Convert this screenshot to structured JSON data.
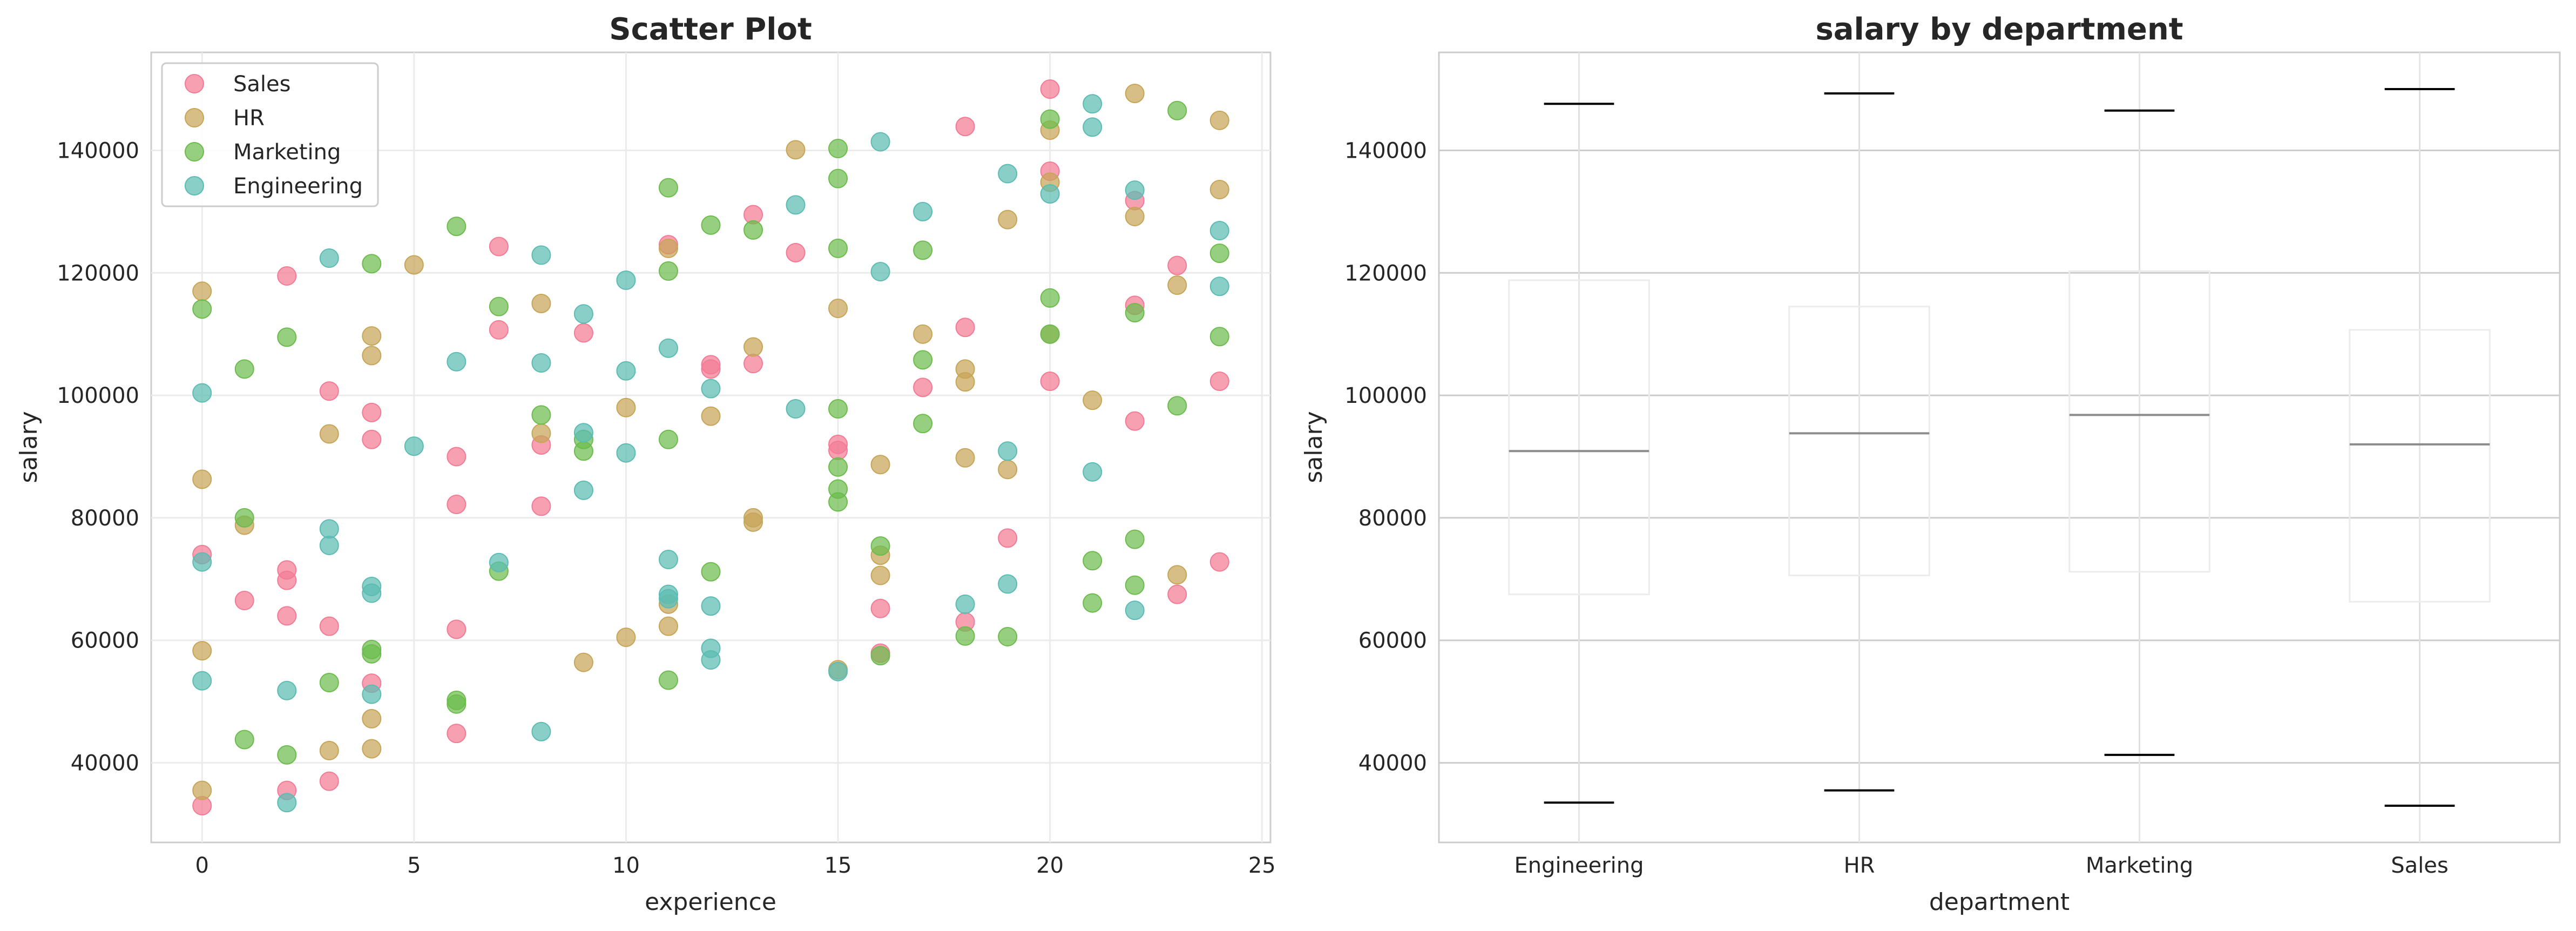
{
  "chart_data": [
    {
      "type": "scatter",
      "title": "Scatter Plot",
      "xlabel": "experience",
      "ylabel": "salary",
      "xlim": [
        -1.2,
        25.2
      ],
      "ylim": [
        27000,
        156000
      ],
      "xticks": [
        0,
        5,
        10,
        15,
        20,
        25
      ],
      "yticks": [
        40000,
        60000,
        80000,
        100000,
        120000,
        140000
      ],
      "grid": true,
      "legend_placement": "top-left",
      "series": [
        {
          "name": "Sales",
          "color": "#f37b94",
          "points": [
            [
              0,
              33000
            ],
            [
              0,
              74000
            ],
            [
              1,
              66500
            ],
            [
              2,
              35500
            ],
            [
              2,
              64000
            ],
            [
              2,
              69800
            ],
            [
              2,
              71500
            ],
            [
              2,
              119500
            ],
            [
              3,
              37000
            ],
            [
              3,
              62300
            ],
            [
              3,
              100700
            ],
            [
              4,
              53000
            ],
            [
              4,
              92800
            ],
            [
              4,
              97200
            ],
            [
              6,
              44800
            ],
            [
              6,
              61800
            ],
            [
              6,
              82200
            ],
            [
              6,
              90000
            ],
            [
              7,
              110700
            ],
            [
              7,
              124300
            ],
            [
              8,
              81900
            ],
            [
              8,
              91900
            ],
            [
              9,
              110200
            ],
            [
              11,
              124600
            ],
            [
              12,
              104300
            ],
            [
              12,
              105000
            ],
            [
              13,
              105200
            ],
            [
              13,
              129500
            ],
            [
              14,
              123300
            ],
            [
              15,
              91000
            ],
            [
              15,
              92000
            ],
            [
              16,
              57900
            ],
            [
              16,
              65200
            ],
            [
              17,
              101300
            ],
            [
              18,
              63000
            ],
            [
              18,
              111100
            ],
            [
              18,
              143900
            ],
            [
              19,
              76700
            ],
            [
              20,
              102300
            ],
            [
              20,
              136600
            ],
            [
              20,
              150000
            ],
            [
              22,
              95800
            ],
            [
              22,
              114700
            ],
            [
              22,
              131800
            ],
            [
              23,
              67500
            ],
            [
              23,
              121200
            ],
            [
              24,
              72800
            ],
            [
              24,
              102300
            ]
          ]
        },
        {
          "name": "HR",
          "color": "#c7a557",
          "points": [
            [
              0,
              35500
            ],
            [
              0,
              58300
            ],
            [
              0,
              86300
            ],
            [
              0,
              117000
            ],
            [
              1,
              78800
            ],
            [
              3,
              42000
            ],
            [
              3,
              93700
            ],
            [
              4,
              42300
            ],
            [
              4,
              47200
            ],
            [
              4,
              106500
            ],
            [
              4,
              109700
            ],
            [
              5,
              121300
            ],
            [
              8,
              93800
            ],
            [
              8,
              115000
            ],
            [
              9,
              56400
            ],
            [
              10,
              60500
            ],
            [
              10,
              98000
            ],
            [
              11,
              62300
            ],
            [
              11,
              65900
            ],
            [
              11,
              124000
            ],
            [
              12,
              96600
            ],
            [
              13,
              79300
            ],
            [
              13,
              80000
            ],
            [
              13,
              107900
            ],
            [
              14,
              140100
            ],
            [
              15,
              55200
            ],
            [
              15,
              114200
            ],
            [
              16,
              70600
            ],
            [
              16,
              73900
            ],
            [
              16,
              88700
            ],
            [
              17,
              110000
            ],
            [
              18,
              89800
            ],
            [
              18,
              102200
            ],
            [
              18,
              104300
            ],
            [
              19,
              87900
            ],
            [
              19,
              128700
            ],
            [
              20,
              110000
            ],
            [
              20,
              134800
            ],
            [
              20,
              143300
            ],
            [
              21,
              99200
            ],
            [
              22,
              129200
            ],
            [
              22,
              149300
            ],
            [
              23,
              70700
            ],
            [
              23,
              118000
            ],
            [
              24,
              133600
            ],
            [
              24,
              144900
            ]
          ]
        },
        {
          "name": "Marketing",
          "color": "#6cbc4d",
          "points": [
            [
              0,
              114100
            ],
            [
              1,
              43800
            ],
            [
              1,
              80000
            ],
            [
              1,
              104300
            ],
            [
              2,
              41300
            ],
            [
              2,
              109500
            ],
            [
              3,
              53100
            ],
            [
              4,
              57800
            ],
            [
              4,
              58500
            ],
            [
              4,
              121500
            ],
            [
              6,
              49600
            ],
            [
              6,
              50200
            ],
            [
              6,
              127600
            ],
            [
              7,
              71300
            ],
            [
              7,
              114500
            ],
            [
              8,
              96800
            ],
            [
              9,
              90900
            ],
            [
              9,
              92800
            ],
            [
              11,
              53500
            ],
            [
              11,
              92800
            ],
            [
              11,
              120300
            ],
            [
              11,
              133900
            ],
            [
              12,
              71200
            ],
            [
              12,
              127800
            ],
            [
              13,
              127000
            ],
            [
              15,
              82600
            ],
            [
              15,
              84700
            ],
            [
              15,
              88300
            ],
            [
              15,
              97800
            ],
            [
              15,
              124000
            ],
            [
              15,
              135400
            ],
            [
              15,
              140300
            ],
            [
              16,
              57500
            ],
            [
              16,
              75400
            ],
            [
              17,
              95400
            ],
            [
              17,
              105800
            ],
            [
              17,
              123700
            ],
            [
              18,
              60700
            ],
            [
              19,
              60600
            ],
            [
              20,
              110000
            ],
            [
              20,
              115900
            ],
            [
              20,
              145100
            ],
            [
              21,
              66100
            ],
            [
              21,
              73000
            ],
            [
              22,
              69000
            ],
            [
              22,
              76500
            ],
            [
              22,
              113500
            ],
            [
              23,
              98300
            ],
            [
              23,
              146500
            ],
            [
              24,
              109600
            ],
            [
              24,
              123200
            ]
          ]
        },
        {
          "name": "Engineering",
          "color": "#5bbcb3",
          "points": [
            [
              0,
              53400
            ],
            [
              0,
              72800
            ],
            [
              0,
              100400
            ],
            [
              2,
              33500
            ],
            [
              2,
              51800
            ],
            [
              3,
              75500
            ],
            [
              3,
              78200
            ],
            [
              3,
              122400
            ],
            [
              4,
              51200
            ],
            [
              4,
              67700
            ],
            [
              4,
              68800
            ],
            [
              5,
              91700
            ],
            [
              6,
              105500
            ],
            [
              7,
              72700
            ],
            [
              8,
              45100
            ],
            [
              8,
              105300
            ],
            [
              8,
              122900
            ],
            [
              9,
              84500
            ],
            [
              9,
              93900
            ],
            [
              9,
              113300
            ],
            [
              10,
              90600
            ],
            [
              10,
              104000
            ],
            [
              10,
              118800
            ],
            [
              11,
              66800
            ],
            [
              11,
              67500
            ],
            [
              11,
              73200
            ],
            [
              11,
              107700
            ],
            [
              12,
              56800
            ],
            [
              12,
              58700
            ],
            [
              12,
              65600
            ],
            [
              12,
              101100
            ],
            [
              14,
              97800
            ],
            [
              14,
              131100
            ],
            [
              15,
              54900
            ],
            [
              16,
              120200
            ],
            [
              16,
              141400
            ],
            [
              17,
              130000
            ],
            [
              18,
              65900
            ],
            [
              19,
              69200
            ],
            [
              19,
              90900
            ],
            [
              19,
              136200
            ],
            [
              20,
              132900
            ],
            [
              21,
              87500
            ],
            [
              21,
              143800
            ],
            [
              21,
              147600
            ],
            [
              22,
              64900
            ],
            [
              22,
              133500
            ],
            [
              24,
              117800
            ],
            [
              24,
              126900
            ]
          ]
        }
      ]
    },
    {
      "type": "box",
      "title": "salary by department",
      "xlabel": "department",
      "ylabel": "salary",
      "ylim": [
        27000,
        156000
      ],
      "yticks": [
        40000,
        60000,
        80000,
        100000,
        120000,
        140000
      ],
      "grid": true,
      "categories": [
        "Engineering",
        "HR",
        "Marketing",
        "Sales"
      ],
      "boxes": [
        {
          "min": 33500,
          "q1": 67500,
          "median": 90900,
          "q3": 118800,
          "max": 147600
        },
        {
          "min": 35500,
          "q1": 70600,
          "median": 93800,
          "q3": 114500,
          "max": 149300
        },
        {
          "min": 41300,
          "q1": 71200,
          "median": 96800,
          "q3": 120300,
          "max": 146500
        },
        {
          "min": 33000,
          "q1": 66300,
          "median": 92000,
          "q3": 110700,
          "max": 150000
        }
      ]
    }
  ]
}
